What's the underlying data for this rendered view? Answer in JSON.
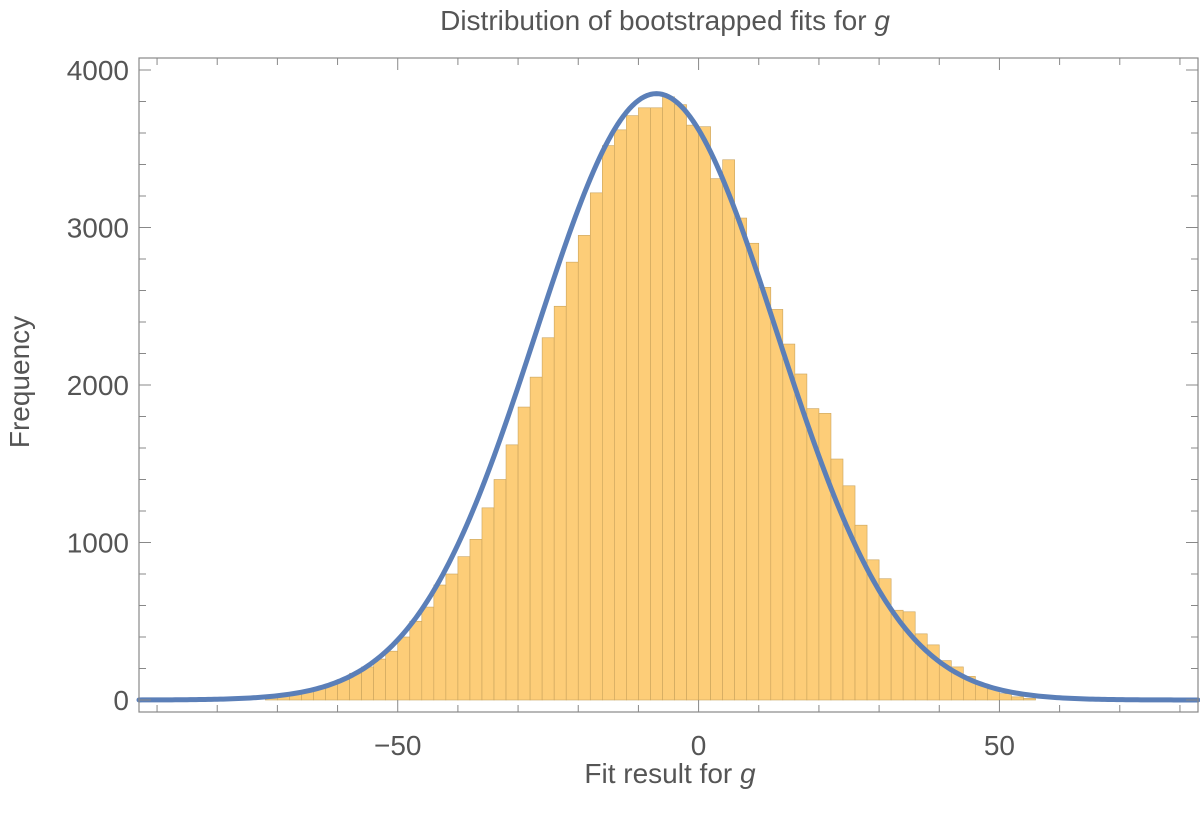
{
  "chart_data": {
    "type": "bar",
    "title": "Distribution of bootstrapped fits for",
    "title_symbol": "g",
    "xlabel": "Fit result for",
    "xlabel_symbol": "g",
    "ylabel": "Frequency",
    "xlim": [
      -93,
      83
    ],
    "ylim": [
      0,
      4000
    ],
    "xticks": [
      -50,
      0,
      50
    ],
    "xtick_labels": [
      "−50",
      "0",
      "50"
    ],
    "yticks": [
      0,
      1000,
      2000,
      3000,
      4000
    ],
    "ytick_labels": [
      "0",
      "1000",
      "2000",
      "3000",
      "4000"
    ],
    "grid": false,
    "colors": {
      "bar_fill": "#fdcd78",
      "bar_stroke": "#c9a35c",
      "curve": "#5b7fb8",
      "frame": "#888888",
      "text": "#555555"
    },
    "bins": {
      "start": -72,
      "width": 2,
      "counts": [
        20,
        30,
        45,
        60,
        80,
        100,
        130,
        170,
        210,
        260,
        310,
        400,
        500,
        590,
        730,
        800,
        910,
        1020,
        1220,
        1400,
        1620,
        1860,
        2050,
        2300,
        2500,
        2780,
        2950,
        3220,
        3520,
        3620,
        3710,
        3760,
        3760,
        3830,
        3780,
        3650,
        3640,
        3310,
        3430,
        3060,
        2900,
        2620,
        2480,
        2260,
        2070,
        1850,
        1820,
        1530,
        1360,
        1110,
        890,
        770,
        570,
        560,
        420,
        350,
        250,
        210,
        150,
        100,
        70,
        40,
        20,
        10
      ]
    },
    "series": [
      {
        "type": "curve",
        "mean": -7,
        "sd": 20,
        "peak": 3850
      }
    ]
  }
}
